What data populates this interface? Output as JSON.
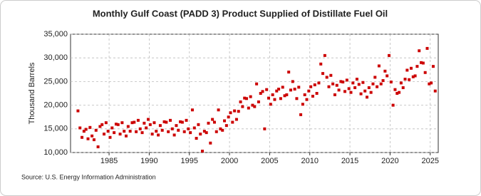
{
  "chart_data": {
    "type": "scatter",
    "title": "Monthly Gulf Coast (PADD 3) Product Supplied of Distillate Fuel Oil",
    "y_label": "Thousand Barrels",
    "source": "Source: U.S. Energy Information Administration",
    "color": "#cc0000",
    "grid": true,
    "xlim": [
      1980.2,
      2026.0
    ],
    "ylim": [
      10000,
      35000
    ],
    "xticks": [
      1985,
      1990,
      1995,
      2000,
      2005,
      2010,
      2015,
      2020,
      2025
    ],
    "yticks": [
      {
        "value": 10000,
        "label": "10,000"
      },
      {
        "value": 15000,
        "label": "15,000"
      },
      {
        "value": 20000,
        "label": "20,000"
      },
      {
        "value": 25000,
        "label": "25,000"
      },
      {
        "value": 30000,
        "label": "30,000"
      },
      {
        "value": 35000,
        "label": "35,000"
      }
    ],
    "x": [
      1981.125,
      1981.375,
      1981.625,
      1981.875,
      1982.125,
      1982.375,
      1982.625,
      1982.875,
      1983.125,
      1983.375,
      1983.625,
      1983.875,
      1984.125,
      1984.375,
      1984.625,
      1984.875,
      1985.125,
      1985.375,
      1985.625,
      1985.875,
      1986.125,
      1986.375,
      1986.625,
      1986.875,
      1987.125,
      1987.375,
      1987.625,
      1987.875,
      1988.125,
      1988.375,
      1988.625,
      1988.875,
      1989.125,
      1989.375,
      1989.625,
      1989.875,
      1990.125,
      1990.375,
      1990.625,
      1990.875,
      1991.125,
      1991.375,
      1991.625,
      1991.875,
      1992.125,
      1992.375,
      1992.625,
      1992.875,
      1993.125,
      1993.375,
      1993.625,
      1993.875,
      1994.125,
      1994.375,
      1994.625,
      1994.875,
      1995.125,
      1995.375,
      1995.625,
      1995.875,
      1996.125,
      1996.375,
      1996.625,
      1996.875,
      1997.125,
      1997.375,
      1997.625,
      1997.875,
      1998.125,
      1998.375,
      1998.625,
      1998.875,
      1999.125,
      1999.375,
      1999.625,
      1999.875,
      2000.125,
      2000.375,
      2000.625,
      2000.875,
      2001.125,
      2001.375,
      2001.625,
      2001.875,
      2002.125,
      2002.375,
      2002.625,
      2002.875,
      2003.125,
      2003.375,
      2003.625,
      2003.875,
      2004.125,
      2004.375,
      2004.625,
      2004.875,
      2005.125,
      2005.375,
      2005.625,
      2005.875,
      2006.125,
      2006.375,
      2006.625,
      2006.875,
      2007.125,
      2007.375,
      2007.625,
      2007.875,
      2008.125,
      2008.375,
      2008.625,
      2008.875,
      2009.125,
      2009.375,
      2009.625,
      2009.875,
      2010.125,
      2010.375,
      2010.625,
      2010.875,
      2011.125,
      2011.375,
      2011.625,
      2011.875,
      2012.125,
      2012.375,
      2012.625,
      2012.875,
      2013.125,
      2013.375,
      2013.625,
      2013.875,
      2014.125,
      2014.375,
      2014.625,
      2014.875,
      2015.125,
      2015.375,
      2015.625,
      2015.875,
      2016.125,
      2016.375,
      2016.625,
      2016.875,
      2017.125,
      2017.375,
      2017.625,
      2017.875,
      2018.125,
      2018.375,
      2018.625,
      2018.875,
      2019.125,
      2019.375,
      2019.625,
      2019.875,
      2020.125,
      2020.375,
      2020.625,
      2020.875,
      2021.125,
      2021.375,
      2021.625,
      2021.875,
      2022.125,
      2022.375,
      2022.625,
      2022.875,
      2023.125,
      2023.375,
      2023.625,
      2023.875,
      2024.125,
      2024.375,
      2024.625,
      2024.875,
      2025.125,
      2025.375,
      2025.625
    ],
    "values": [
      18800,
      15200,
      13200,
      14500,
      14900,
      12900,
      15300,
      13500,
      12700,
      14700,
      11200,
      15500,
      15900,
      13900,
      16300,
      14500,
      13200,
      15200,
      14200,
      16000,
      15900,
      13900,
      16300,
      14500,
      13500,
      15500,
      14500,
      16300,
      16400,
      14400,
      16800,
      15000,
      14200,
      16200,
      15200,
      17000,
      15900,
      13900,
      16300,
      14500,
      13700,
      15700,
      14700,
      16500,
      16400,
      14400,
      16800,
      15000,
      13700,
      15700,
      14700,
      16500,
      16400,
      14400,
      16800,
      15000,
      14200,
      19000,
      15200,
      13000,
      15900,
      13900,
      10300,
      14500,
      14200,
      16200,
      12000,
      17000,
      16400,
      14400,
      19000,
      15000,
      14700,
      16700,
      15700,
      17500,
      18400,
      16400,
      18800,
      17000,
      18700,
      20700,
      19700,
      21500,
      21400,
      19400,
      21800,
      20000,
      19700,
      24500,
      20700,
      22500,
      22900,
      15000,
      23300,
      21500,
      20200,
      22200,
      21200,
      23000,
      23400,
      21400,
      23800,
      22000,
      22200,
      27000,
      23200,
      25000,
      23400,
      21400,
      23800,
      18000,
      20200,
      22200,
      21200,
      23000,
      23900,
      21900,
      24300,
      22500,
      24700,
      28700,
      26700,
      30500,
      25900,
      23900,
      26300,
      24500,
      22200,
      24200,
      23200,
      25000,
      24900,
      22900,
      25300,
      23500,
      22700,
      24700,
      23700,
      25500,
      24400,
      22400,
      24800,
      23000,
      21700,
      23700,
      22700,
      24500,
      25900,
      23900,
      28300,
      24500,
      25200,
      27200,
      26200,
      30500,
      24900,
      20000,
      23300,
      22500,
      22700,
      24700,
      23700,
      25500,
      27400,
      25400,
      27800,
      26000,
      26200,
      28200,
      31500,
      29000,
      28900,
      26900,
      32000,
      24500,
      24700,
      28200,
      23000
    ]
  }
}
